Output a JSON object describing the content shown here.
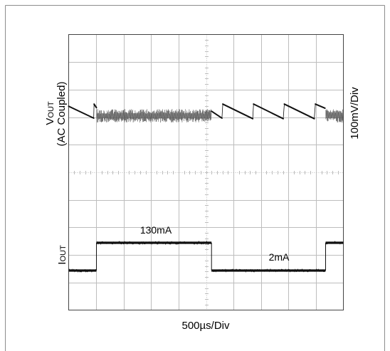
{
  "chart_data": {
    "type": "line",
    "title": "",
    "xlabel": "500µs/Div",
    "us_per_div": 500,
    "x_range_us": [
      0,
      5000
    ],
    "divisions": {
      "x": 10,
      "y": 10
    },
    "grid": true,
    "vout": {
      "label_main": "V",
      "label_sub": "OUT",
      "label_note": "(AC Coupled)",
      "scale_label": "100mV/Div",
      "mv_per_div": 100,
      "ramps_t_us_mv": [
        [
          [
            0,
            20
          ],
          [
            455,
            -23
          ],
          [
            462,
            28
          ],
          [
            505,
            15
          ]
        ],
        [
          [
            2600,
            2
          ],
          [
            2790,
            -23
          ],
          [
            2805,
            28
          ],
          [
            3350,
            -25
          ],
          [
            3365,
            28
          ],
          [
            3905,
            -25
          ],
          [
            3925,
            28
          ],
          [
            4470,
            -25
          ],
          [
            4490,
            28
          ],
          [
            4665,
            13
          ]
        ]
      ],
      "noise_bands": [
        {
          "t_start_us": 505,
          "t_end_us": 2600,
          "min_mv": -39,
          "max_mv": 10
        },
        {
          "t_start_us": 4676,
          "t_end_us": 5000,
          "min_mv": -39,
          "max_mv": 10
        }
      ]
    },
    "iout": {
      "label_main": "I",
      "label_sub": "OUT",
      "points_t_us_ma": [
        [
          0,
          2
        ],
        [
          505,
          2
        ],
        [
          505,
          130
        ],
        [
          2600,
          130
        ],
        [
          2600,
          2
        ],
        [
          4676,
          2
        ],
        [
          4676,
          130
        ],
        [
          5000,
          130
        ]
      ],
      "level_labels": [
        "130mA",
        "2mA"
      ]
    },
    "colors": {
      "trace": "#111111",
      "noise": "#555555",
      "grid": "#bdbdbd",
      "border": "#444444",
      "frame": "#8c8c8c"
    }
  }
}
